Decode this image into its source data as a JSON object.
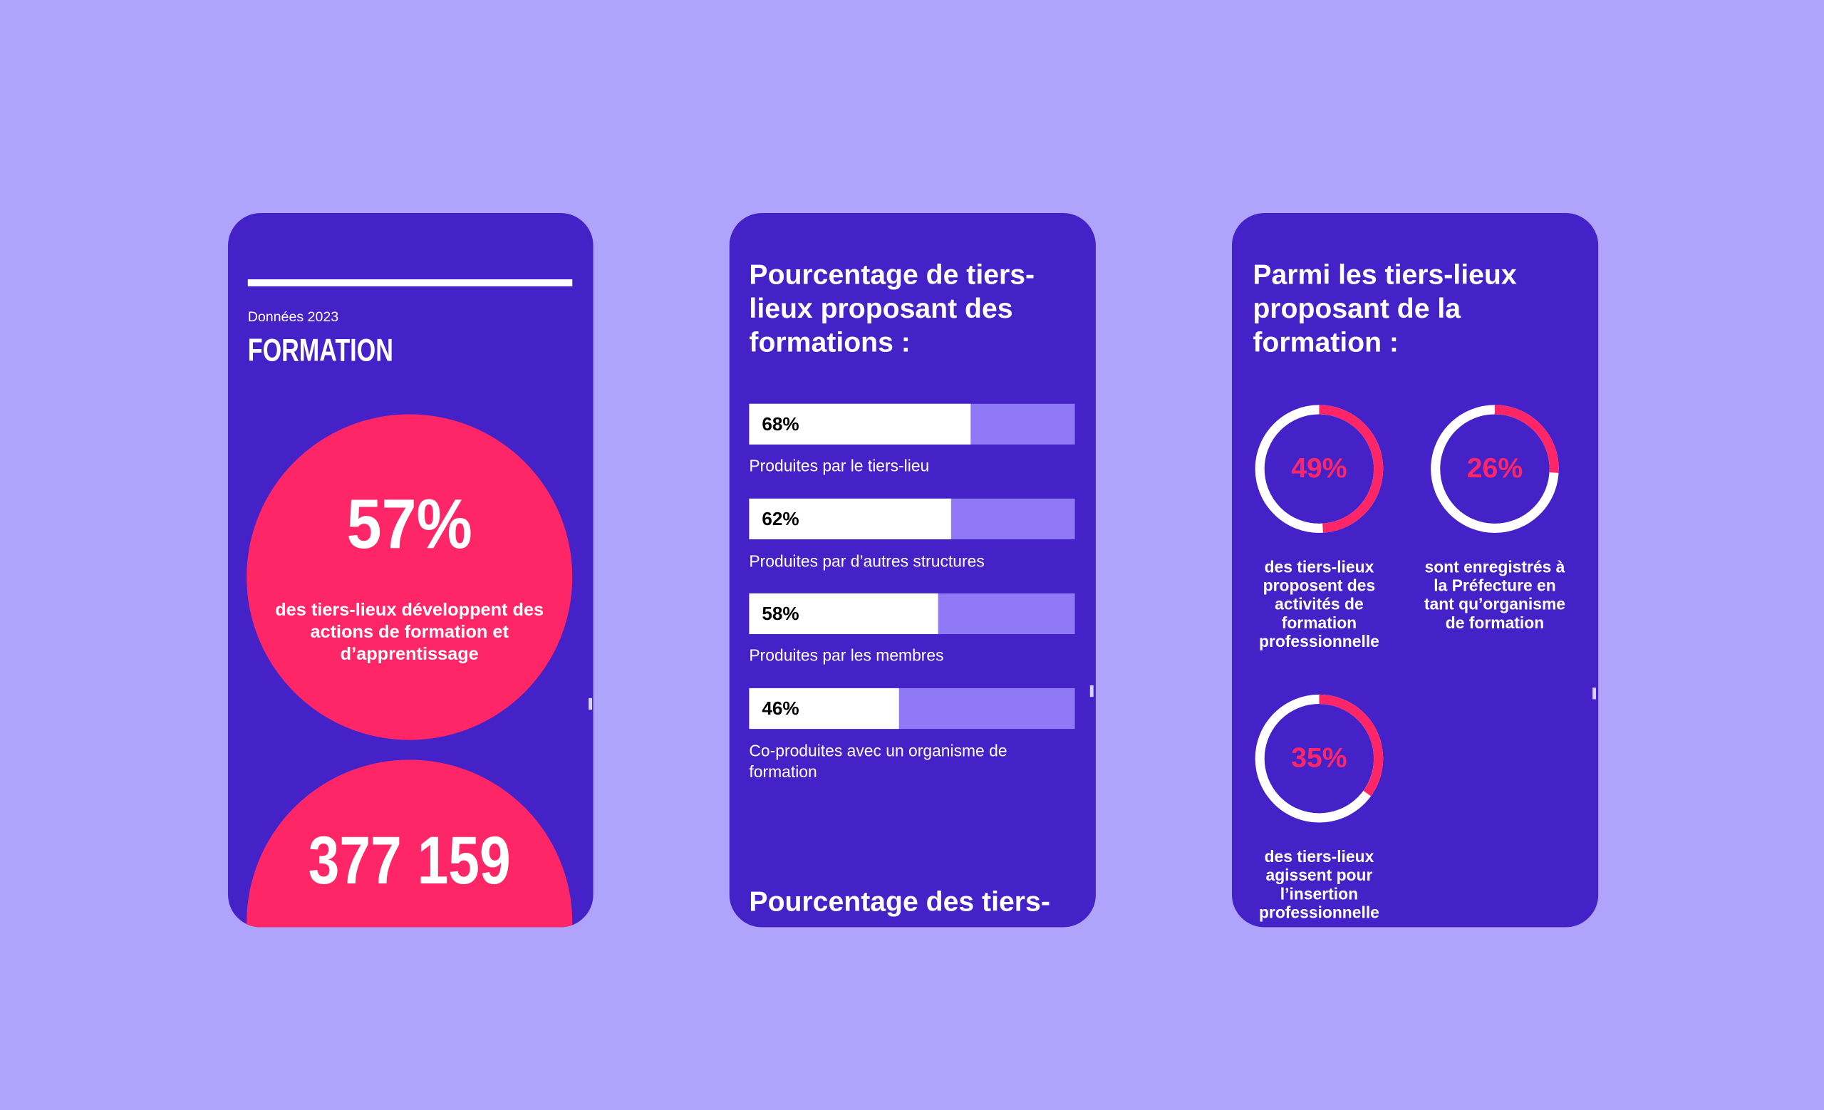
{
  "formation": {
    "kicker": "Données 2023",
    "title": "FORMATION",
    "highlight": "57%",
    "highlight_text": "des tiers-lieux développent des actions de formation et d’apprentissage",
    "next_figure": "377 159"
  },
  "bars": {
    "type": "bar",
    "title": "Pourcentage de tiers-lieux proposant des formations :",
    "categories": [
      "Produites par le tiers-lieu",
      "Produites par d’autres structures",
      "Produites par les membres",
      "Co-produites avec un organisme de formation"
    ],
    "values": [
      68,
      62,
      58,
      46
    ],
    "value_labels": [
      "68%",
      "62%",
      "58%",
      "46%"
    ],
    "xlim": [
      0,
      100
    ],
    "color": "#ffffff",
    "track_color": "#8f79f7",
    "next_title": "Pourcentage des tiers-"
  },
  "donuts": {
    "type": "donut",
    "title": "Parmi les tiers-lieux proposant de la formation :",
    "values": [
      49,
      26,
      35
    ],
    "value_labels": [
      "49%",
      "26%",
      "35%"
    ],
    "descriptions": [
      "des tiers-lieux proposent des activités de formation professionnelle",
      "sont enregistrés à la Préfecture en tant qu’organisme de formation",
      "des tiers-lieux agissent pour l’insertion professionnelle"
    ],
    "xlim": [
      0,
      100
    ],
    "color": "#ff2667",
    "track_color": "#ffffff"
  }
}
